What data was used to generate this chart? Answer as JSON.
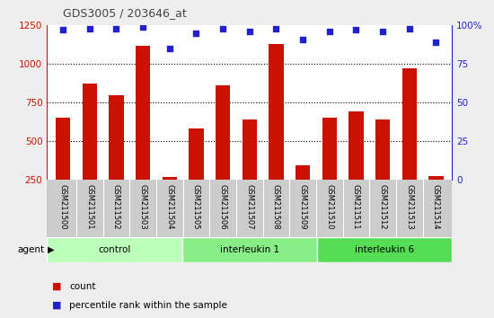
{
  "title": "GDS3005 / 203646_at",
  "samples": [
    "GSM211500",
    "GSM211501",
    "GSM211502",
    "GSM211503",
    "GSM211504",
    "GSM211505",
    "GSM211506",
    "GSM211507",
    "GSM211508",
    "GSM211509",
    "GSM211510",
    "GSM211511",
    "GSM211512",
    "GSM211513",
    "GSM211514"
  ],
  "counts": [
    650,
    875,
    800,
    1120,
    265,
    580,
    860,
    640,
    1130,
    345,
    650,
    690,
    640,
    970,
    275
  ],
  "percentiles": [
    97,
    98,
    98,
    99,
    85,
    95,
    98,
    96,
    98,
    91,
    96,
    97,
    96,
    98,
    89
  ],
  "groups": [
    {
      "label": "control",
      "start": 0,
      "end": 5,
      "color": "#bbffbb"
    },
    {
      "label": "interleukin 1",
      "start": 5,
      "end": 10,
      "color": "#88ee88"
    },
    {
      "label": "interleukin 6",
      "start": 10,
      "end": 15,
      "color": "#55dd55"
    }
  ],
  "bar_color": "#cc1100",
  "dot_color": "#2222cc",
  "ylim_left": [
    250,
    1250
  ],
  "ylim_right": [
    0,
    100
  ],
  "yticks_left": [
    250,
    500,
    750,
    1000,
    1250
  ],
  "yticks_right": [
    0,
    25,
    50,
    75,
    100
  ],
  "background_color": "#eeeeee",
  "plot_bg": "#ffffff",
  "left_axis_color": "#cc1100",
  "right_axis_color": "#2222cc",
  "title_color": "#444444",
  "tick_area_color": "#cccccc",
  "group_border_color": "#ffffff"
}
